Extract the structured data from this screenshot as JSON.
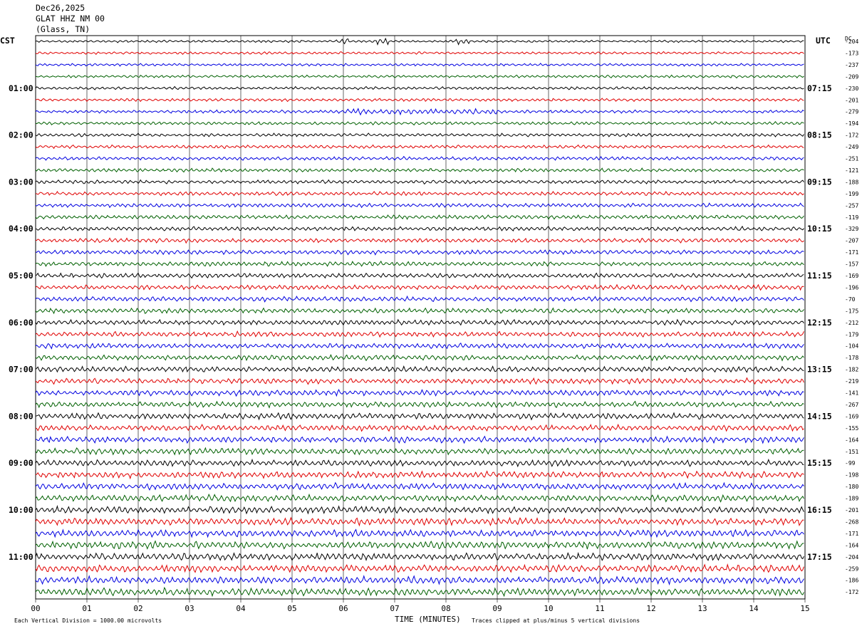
{
  "header": {
    "date": "Dec26,2025",
    "station": "GLAT HHZ NM 00",
    "location": "(Glass, TN)"
  },
  "left_tz": "CST",
  "right_tz": "UTC",
  "dc_label": "DC",
  "footer": {
    "scale_note": "Each Vertical Division = 1000.00 microvolts",
    "clip_note": "Traces clipped at plus/minus 5 vertical divisions"
  },
  "chart_data": {
    "type": "line",
    "title": "",
    "xlabel": "TIME (MINUTES)",
    "ylabel": "",
    "x_ticks": [
      "00",
      "01",
      "02",
      "03",
      "04",
      "05",
      "06",
      "07",
      "08",
      "09",
      "10",
      "11",
      "12",
      "13",
      "14",
      "15"
    ],
    "xlim": [
      0,
      15
    ],
    "left_hour_labels": [
      "01:00",
      "02:00",
      "03:00",
      "04:00",
      "05:00",
      "06:00",
      "07:00",
      "08:00",
      "09:00",
      "10:00",
      "11:00"
    ],
    "right_hour_labels": [
      "07:15",
      "08:15",
      "09:15",
      "10:15",
      "11:15",
      "12:15",
      "13:15",
      "14:15",
      "15:15",
      "16:15",
      "17:15"
    ],
    "trace_colors": [
      "#000000",
      "#e00000",
      "#0000e0",
      "#006000"
    ],
    "trace_count": 48,
    "dc_offsets": [
      "-204",
      "-173",
      "-237",
      "-209",
      "-230",
      "-201",
      "-279",
      "-194",
      "-172",
      "-249",
      "-251",
      "-121",
      "-188",
      "-199",
      "-257",
      "-119",
      "-329",
      "-207",
      "-171",
      "-157",
      "-169",
      "-196",
      "-70",
      "-175",
      "-212",
      "-179",
      "-104",
      "-178",
      "-182",
      "-219",
      "-141",
      "-267",
      "-169",
      "-155",
      "-164",
      "-151",
      "-99",
      "-198",
      "-180",
      "-189",
      "-201",
      "-268",
      "-171",
      "-164",
      "-204",
      "-259",
      "-186",
      "-172"
    ],
    "grid": true
  }
}
